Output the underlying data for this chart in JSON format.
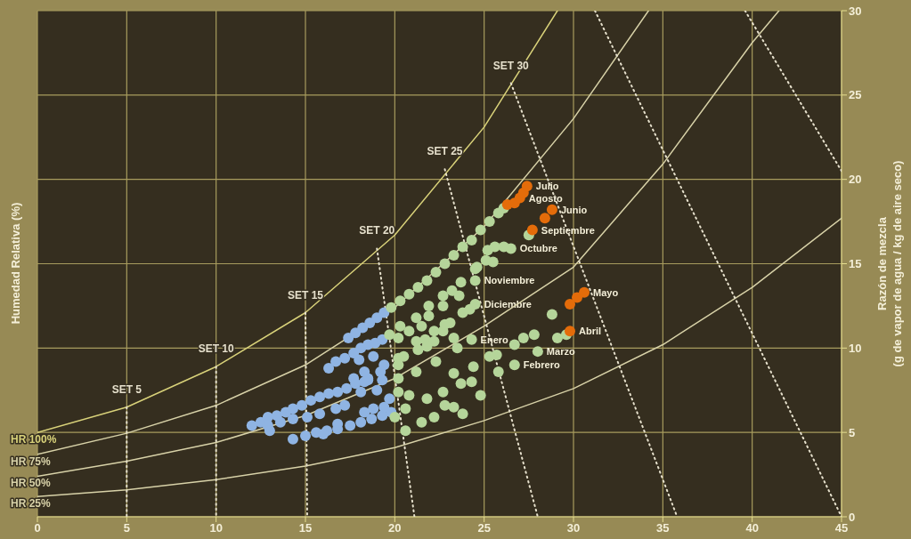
{
  "chart_data": {
    "type": "scatter",
    "ylabel": "Razón de mezcla\n(g de vapor de agua / kg de aire seco)",
    "xlim": [
      0,
      45
    ],
    "xticks": [
      0,
      5,
      10,
      15,
      20,
      25,
      30,
      35,
      40,
      45
    ],
    "ylim": [
      0,
      30
    ],
    "yticks": [
      0,
      5,
      10,
      15,
      20,
      25,
      30
    ],
    "grid": true,
    "series": [
      {
        "type": "line",
        "name": "HR 100%",
        "color": "#d9d27a",
        "line_style": "solid",
        "marker": "none",
        "x": [
          0,
          5,
          10,
          15,
          20,
          25,
          29.1
        ],
        "values": [
          5,
          6.5,
          8.9,
          12.1,
          16.7,
          23.1,
          30
        ]
      },
      {
        "type": "line",
        "name": "HR 75%",
        "color": "#d8d2a8",
        "line_style": "solid",
        "marker": "none",
        "x": [
          0,
          5,
          10,
          15,
          20,
          25,
          30,
          34.2
        ],
        "values": [
          3.7,
          4.95,
          6.6,
          9,
          12.4,
          17.2,
          23.6,
          30
        ]
      },
      {
        "type": "line",
        "name": "HR 50%",
        "color": "#d8d2a8",
        "line_style": "solid",
        "marker": "none",
        "x": [
          0,
          5,
          10,
          15,
          20,
          25,
          30,
          35,
          40,
          41.5
        ],
        "values": [
          2.4,
          3.3,
          4.4,
          6,
          8.2,
          11.3,
          14.8,
          20.9,
          28.1,
          30
        ]
      },
      {
        "type": "line",
        "name": "HR 25%",
        "color": "#d8d2a8",
        "line_style": "solid",
        "marker": "none",
        "x": [
          0,
          5,
          10,
          15,
          20,
          25,
          30,
          35,
          40,
          45
        ],
        "values": [
          1.2,
          1.6,
          2.2,
          3,
          4.1,
          5.7,
          7.6,
          10.2,
          13.6,
          17.7
        ]
      },
      {
        "type": "line",
        "name": "SET 5",
        "color": "#e6e0cc",
        "line_style": "dotted",
        "marker": "none",
        "x": [
          5,
          5
        ],
        "values": [
          6.5,
          0
        ]
      },
      {
        "type": "line",
        "name": "SET 10",
        "color": "#e6e0cc",
        "line_style": "dotted",
        "marker": "none",
        "x": [
          10,
          10
        ],
        "values": [
          8.9,
          0
        ]
      },
      {
        "type": "line",
        "name": "SET 15",
        "color": "#e6e0cc",
        "line_style": "dotted",
        "marker": "none",
        "x": [
          15,
          15.1
        ],
        "values": [
          12.1,
          0
        ]
      },
      {
        "type": "line",
        "name": "SET 20",
        "color": "#e6e0cc",
        "line_style": "dotted",
        "marker": "none",
        "x": [
          19,
          21.1
        ],
        "values": [
          15.9,
          0
        ]
      },
      {
        "type": "line",
        "name": "SET 25",
        "color": "#e6e0cc",
        "line_style": "dotted",
        "marker": "none",
        "x": [
          22.8,
          28
        ],
        "values": [
          20.6,
          0
        ]
      },
      {
        "type": "line",
        "name": "SET 30",
        "color": "#e6e0cc",
        "line_style": "dotted",
        "marker": "none",
        "x": [
          26.5,
          35.8
        ],
        "values": [
          25.7,
          0
        ]
      },
      {
        "type": "line",
        "color": "#e6e0cc",
        "line_style": "dotted",
        "marker": "none",
        "x": [
          31.2,
          45
        ],
        "values": [
          30,
          0
        ]
      },
      {
        "type": "line",
        "color": "#e6e0cc",
        "line_style": "dotted",
        "marker": "none",
        "x": [
          39.6,
          45
        ],
        "values": [
          30,
          20.5
        ]
      },
      {
        "color": "#8fb4e3",
        "marker": "circle",
        "x": [
          17.4,
          17.8,
          18.2,
          18.6,
          19,
          19.4,
          16.3,
          16.7,
          17.2,
          17.7,
          18.1,
          18.5,
          18.9,
          19.3,
          18,
          18.8,
          19.4,
          19.2,
          18.5,
          17.7,
          18.3,
          18.5,
          12,
          12.5,
          12.9,
          13.4,
          13.9,
          14.3,
          14.8,
          15.3,
          15.8,
          16.3,
          16.8,
          17.3,
          17.8,
          18.3,
          12.9,
          13.6,
          14.3,
          15.1,
          15.8,
          16.7,
          17.2,
          18.1,
          19,
          19.3,
          13,
          14.3,
          15,
          15.6,
          16.2,
          16.8,
          17.5,
          18.1,
          18.7,
          19.3,
          19.8,
          18.3,
          18.8,
          19.4,
          16.8,
          16,
          19.7
        ],
        "values": [
          10.6,
          10.9,
          11.2,
          11.5,
          11.8,
          12.1,
          8.8,
          9.2,
          9.4,
          9.7,
          10,
          10.2,
          10.3,
          10.5,
          9.3,
          9.5,
          9,
          8.6,
          8.2,
          8.2,
          8.6,
          8.1,
          5.4,
          5.6,
          5.9,
          6,
          6.2,
          6.4,
          6.6,
          6.9,
          7.1,
          7.3,
          7.4,
          7.6,
          7.9,
          8,
          5.4,
          5.6,
          5.8,
          5.9,
          6.1,
          6.4,
          6.6,
          7.4,
          7.5,
          8.1,
          5.1,
          4.6,
          4.8,
          5,
          5.1,
          5.2,
          5.4,
          5.6,
          5.8,
          6,
          6.2,
          6.2,
          6.4,
          6.5,
          5.5,
          4.9,
          7
        ]
      },
      {
        "color": "#b5d59a",
        "marker": "circle",
        "x": [
          19.8,
          20.3,
          20.8,
          21.3,
          21.8,
          22.3,
          22.8,
          23.3,
          23.8,
          24.3,
          24.8,
          25.3,
          25.8,
          26.1,
          25.2,
          25.6,
          26.1,
          25.1,
          25.5,
          24.6,
          26.5,
          27.5,
          24.5,
          24.5,
          23.7,
          23.2,
          22.7,
          23.6,
          22.7,
          21.9,
          24.5,
          24.2,
          23.8,
          21.9,
          21.2,
          23.1,
          20.3,
          20.8,
          21.5,
          22.2,
          22.7,
          22.8,
          19.7,
          20.2,
          21.2,
          21.7,
          22.2,
          23.3,
          21.3,
          21.8,
          23.5,
          24.3,
          25.7,
          25.3,
          26.7,
          27.2,
          27.8,
          28,
          20.2,
          20.5,
          22.3,
          21.2,
          23.3,
          24.4,
          25.8,
          26.7,
          28.8,
          29.6,
          29.1,
          20.2,
          20.8,
          20.6,
          21.8,
          22.7,
          23.7,
          24.3,
          23.3,
          22.2,
          21.5,
          20.6,
          20,
          23.8,
          24.8,
          22.8,
          20.2,
          20.2
        ],
        "values": [
          12.4,
          12.8,
          13.2,
          13.6,
          14,
          14.5,
          15,
          15.5,
          16,
          16.4,
          17,
          17.5,
          18,
          18.3,
          15.8,
          16,
          16,
          15.2,
          15.1,
          14.8,
          15.9,
          16.7,
          14.7,
          14,
          13.9,
          13.4,
          13.1,
          13.1,
          12.5,
          12.5,
          12.6,
          12.3,
          12.1,
          11.9,
          11.8,
          11.5,
          11.3,
          11,
          11.3,
          11,
          11,
          11.4,
          10.8,
          10.6,
          10.4,
          10.5,
          10.4,
          10.6,
          9.9,
          10.1,
          10,
          10.5,
          9.6,
          9.5,
          10.2,
          10.6,
          10.8,
          9.8,
          9.4,
          9.5,
          9.2,
          8.6,
          8.5,
          8.9,
          8.6,
          9,
          12,
          10.8,
          10.6,
          7.4,
          7.2,
          6.4,
          7,
          7.4,
          7.9,
          8,
          6.5,
          5.9,
          5.6,
          5.1,
          5.9,
          6.1,
          7.2,
          6.6,
          8.2,
          9
        ]
      },
      {
        "color": "#e46c0a",
        "marker": "circle",
        "x": [
          26.3,
          26.7,
          27,
          27.2,
          27.4,
          27.7,
          28.4,
          28.8,
          29.8,
          30.2,
          30.4,
          30.6,
          29.8
        ],
        "values": [
          18.5,
          18.6,
          18.9,
          19.2,
          19.6,
          17,
          17.7,
          18.2,
          12.6,
          13,
          null,
          13.3,
          11
        ]
      }
    ],
    "annotations": [
      "Humedad Relativa (%)",
      {
        "text": "Julio",
        "x": 27.4,
        "y": 19.6
      },
      {
        "text": "Agosto",
        "x": 27,
        "y": 18.9
      },
      {
        "text": "Septiembre",
        "x": 27.7,
        "y": 17
      },
      {
        "text": "Junio",
        "x": 28.8,
        "y": 18.2
      },
      {
        "text": "Octubre",
        "x": 26.5,
        "y": 15.9
      },
      {
        "text": "Noviembre",
        "x": 24.5,
        "y": 14
      },
      {
        "text": "Diciembre",
        "x": 24.5,
        "y": 12.6
      },
      {
        "text": "Enero",
        "x": 24.3,
        "y": 10.5
      },
      {
        "text": "Febrero",
        "x": 26.7,
        "y": 9
      },
      {
        "text": "Marzo",
        "x": 28,
        "y": 9.8
      },
      {
        "text": "Mayo",
        "x": 30.6,
        "y": 13.3
      },
      {
        "text": "Abril",
        "x": 29.8,
        "y": 11
      }
    ]
  }
}
